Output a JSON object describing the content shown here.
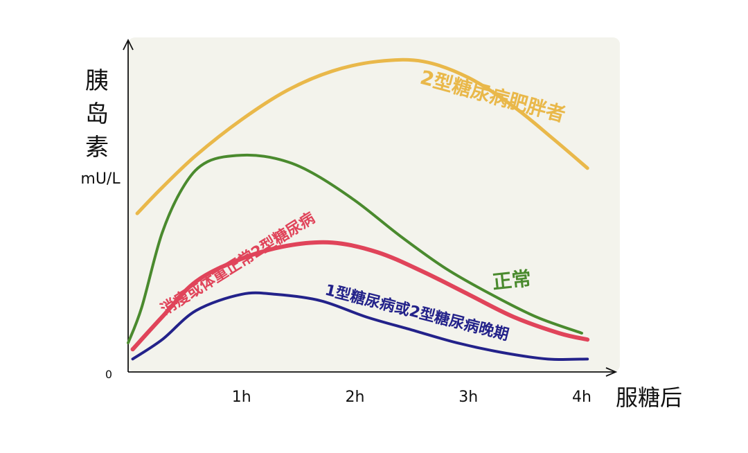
{
  "chart_data": {
    "type": "line",
    "title": "",
    "ylabel": [
      "胰",
      "岛",
      "素",
      "mU/L"
    ],
    "xlabel": "服糖后",
    "origin_label": "0",
    "x_ticks": [
      {
        "x": 1,
        "label": "1h"
      },
      {
        "x": 2,
        "label": "2h"
      },
      {
        "x": 3,
        "label": "3h"
      },
      {
        "x": 4,
        "label": "4h"
      }
    ],
    "xlim": [
      0,
      4
    ],
    "ylim": [
      0,
      100
    ],
    "grid": false,
    "legend": "inline labels",
    "series": [
      {
        "name": "2型糖尿病肥胖者",
        "color": "#E9B84A",
        "values": [
          [
            0.08,
            49
          ],
          [
            0.3,
            57
          ],
          [
            0.6,
            67
          ],
          [
            1.0,
            78
          ],
          [
            1.4,
            87
          ],
          [
            1.8,
            93
          ],
          [
            2.2,
            96
          ],
          [
            2.6,
            96
          ],
          [
            3.0,
            91
          ],
          [
            3.4,
            82
          ],
          [
            3.75,
            72
          ],
          [
            4.05,
            63
          ]
        ]
      },
      {
        "name": "正常",
        "color": "#4A8A2E",
        "values": [
          [
            0.0,
            9
          ],
          [
            0.12,
            20
          ],
          [
            0.3,
            43
          ],
          [
            0.5,
            58
          ],
          [
            0.7,
            65
          ],
          [
            1.0,
            67
          ],
          [
            1.3,
            66
          ],
          [
            1.6,
            62
          ],
          [
            2.0,
            53
          ],
          [
            2.4,
            42
          ],
          [
            2.8,
            32
          ],
          [
            3.2,
            24
          ],
          [
            3.6,
            17
          ],
          [
            4.0,
            12
          ]
        ]
      },
      {
        "name": "消瘦或体重正常2型糖尿病",
        "color": "#E0445A",
        "values": [
          [
            0.04,
            7
          ],
          [
            0.3,
            17
          ],
          [
            0.6,
            28
          ],
          [
            1.0,
            35
          ],
          [
            1.4,
            39
          ],
          [
            1.8,
            40
          ],
          [
            2.2,
            37
          ],
          [
            2.6,
            31
          ],
          [
            3.0,
            24
          ],
          [
            3.4,
            17
          ],
          [
            3.8,
            12
          ],
          [
            4.05,
            10
          ]
        ]
      },
      {
        "name": "1型糖尿病或2型糖尿病晚期",
        "color": "#23228A",
        "values": [
          [
            0.04,
            4
          ],
          [
            0.3,
            10
          ],
          [
            0.6,
            19
          ],
          [
            1.0,
            24
          ],
          [
            1.3,
            24
          ],
          [
            1.7,
            22
          ],
          [
            2.1,
            17
          ],
          [
            2.5,
            13
          ],
          [
            2.9,
            9
          ],
          [
            3.3,
            6
          ],
          [
            3.7,
            4
          ],
          [
            4.05,
            4
          ]
        ]
      }
    ],
    "annotations": [
      {
        "series": 0,
        "text": "2型糖尿病肥胖者"
      },
      {
        "series": 1,
        "text": "正常"
      },
      {
        "series": 2,
        "text": "消瘦或体重正常2型糖尿病"
      },
      {
        "series": 3,
        "text": "1型糖尿病或2型糖尿病晚期"
      }
    ],
    "background": "#F3F3EC"
  }
}
